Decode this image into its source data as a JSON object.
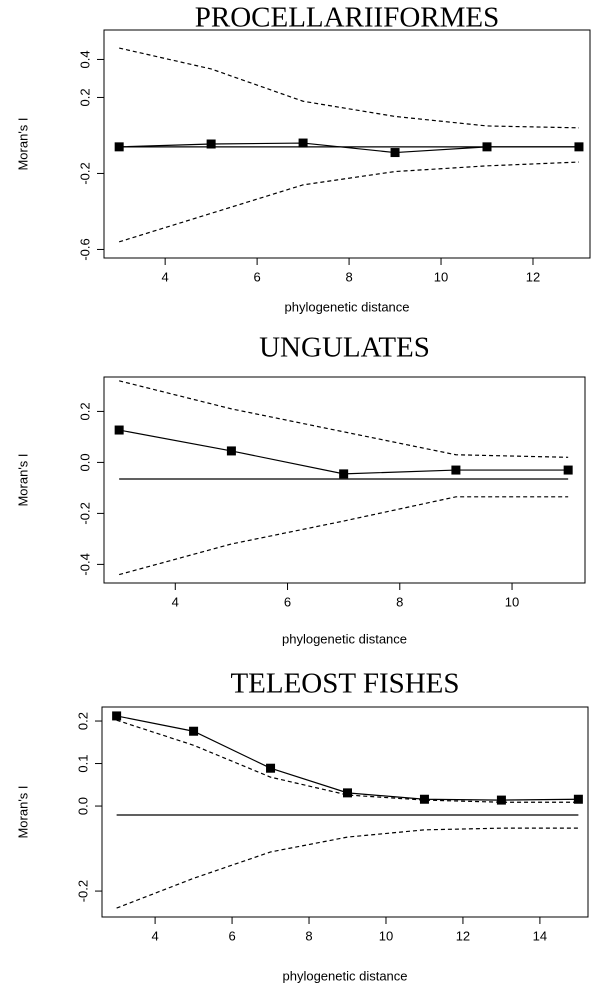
{
  "chart_data": [
    {
      "type": "line",
      "title": "PROCELLARIIFORMES",
      "xlabel": "phylogenetic distance",
      "ylabel": "Moran's I",
      "x": [
        3,
        5,
        7,
        9,
        11,
        13
      ],
      "series": [
        {
          "color": "#000000",
          "line_style": "solid",
          "marker": "square",
          "values": [
            -0.06,
            -0.045,
            -0.04,
            -0.09,
            -0.06,
            -0.06
          ]
        },
        {
          "color": "#000000",
          "line_style": "solid",
          "values": [
            -0.06,
            -0.06,
            -0.06,
            -0.06,
            -0.06,
            -0.06
          ]
        },
        {
          "color": "#000000",
          "line_style": "dashed",
          "values": [
            0.46,
            0.35,
            0.18,
            0.1,
            0.05,
            0.04
          ]
        },
        {
          "color": "#000000",
          "line_style": "dashed",
          "values": [
            -0.56,
            -0.41,
            -0.26,
            -0.19,
            -0.16,
            -0.14
          ]
        }
      ],
      "xlim": [
        2.67,
        13.24
      ],
      "xticks": [
        4,
        6,
        8,
        10,
        12
      ],
      "ylim": [
        -0.645,
        0.555
      ],
      "yticks": [
        -0.6,
        -0.2,
        0.2,
        0.4
      ]
    },
    {
      "type": "line",
      "title": "UNGULATES",
      "xlabel": "phylogenetic distance",
      "ylabel": "Moran's I",
      "x": [
        3,
        5,
        7,
        9,
        11
      ],
      "series": [
        {
          "color": "#000000",
          "line_style": "solid",
          "marker": "square",
          "values": [
            0.127,
            0.045,
            -0.045,
            -0.03,
            -0.03
          ]
        },
        {
          "color": "#000000",
          "line_style": "solid",
          "values": [
            -0.065,
            -0.065,
            -0.065,
            -0.065,
            -0.065
          ]
        },
        {
          "color": "#000000",
          "line_style": "dashed",
          "values": [
            0.32,
            0.21,
            0.12,
            0.03,
            0.02
          ]
        },
        {
          "color": "#000000",
          "line_style": "dashed",
          "values": [
            -0.44,
            -0.32,
            -0.23,
            -0.135,
            -0.135
          ]
        }
      ],
      "xlim": [
        2.73,
        11.3
      ],
      "xticks": [
        4,
        6,
        8,
        10
      ],
      "ylim": [
        -0.473,
        0.335
      ],
      "yticks": [
        -0.4,
        -0.2,
        {
          "value": 0,
          "label": "0.0"
        },
        0.2
      ]
    },
    {
      "type": "line",
      "title": "TELEOST FISHES",
      "xlabel": "phylogenetic distance",
      "ylabel": "Moran's I",
      "x": [
        3,
        5,
        7,
        9,
        11,
        13,
        15
      ],
      "series": [
        {
          "color": "#000000",
          "line_style": "solid",
          "marker": "square",
          "values": [
            0.212,
            0.176,
            0.089,
            0.031,
            0.016,
            0.014,
            0.016
          ]
        },
        {
          "color": "#000000",
          "line_style": "solid",
          "values": [
            -0.021,
            -0.021,
            -0.021,
            -0.021,
            -0.021,
            -0.021,
            -0.021
          ]
        },
        {
          "color": "#000000",
          "line_style": "dashed",
          "values": [
            0.202,
            0.143,
            0.068,
            0.026,
            0.014,
            0.009,
            0.009
          ]
        },
        {
          "color": "#000000",
          "line_style": "dashed",
          "values": [
            -0.24,
            -0.17,
            -0.108,
            -0.073,
            -0.056,
            -0.052,
            -0.052
          ]
        }
      ],
      "xlim": [
        2.62,
        15.25
      ],
      "xticks": [
        4,
        6,
        8,
        10,
        12,
        14
      ],
      "ylim": [
        -0.261,
        0.233
      ],
      "yticks": [
        -0.2,
        {
          "value": 0,
          "label": "0.0"
        },
        0.1,
        0.2
      ]
    }
  ]
}
